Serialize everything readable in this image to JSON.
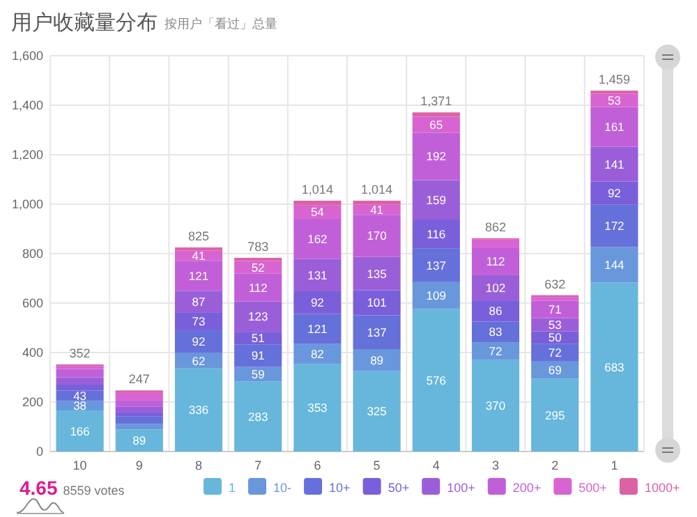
{
  "chart_data": {
    "type": "bar",
    "stacked": true,
    "title": "用户收藏量分布",
    "subtitle": "按用户「看过」总量",
    "categories": [
      "10",
      "9",
      "8",
      "7",
      "6",
      "5",
      "4",
      "3",
      "2",
      "1"
    ],
    "series": [
      {
        "name": "1",
        "color": "#67b6dc",
        "values": [
          166,
          89,
          336,
          283,
          353,
          325,
          576,
          370,
          295,
          683
        ],
        "value_labels": [
          "166",
          "89",
          "336",
          "283",
          "353",
          "325",
          "576",
          "370",
          "295",
          "683"
        ]
      },
      {
        "name": "10-",
        "color": "#6897dc",
        "values": [
          38,
          22,
          62,
          59,
          82,
          89,
          109,
          72,
          69,
          144
        ],
        "value_labels": [
          "38",
          null,
          "62",
          "59",
          "82",
          "89",
          "109",
          "72",
          "69",
          "144"
        ]
      },
      {
        "name": "10+",
        "color": "#6570da",
        "values": [
          43,
          32,
          92,
          91,
          121,
          137,
          137,
          83,
          72,
          172
        ],
        "value_labels": [
          "43",
          null,
          "92",
          "91",
          "121",
          "137",
          "137",
          "83",
          "72",
          "172"
        ]
      },
      {
        "name": "50+",
        "color": "#7a5fdb",
        "values": [
          26,
          15,
          73,
          51,
          92,
          101,
          116,
          86,
          50,
          92
        ],
        "value_labels": [
          null,
          null,
          "73",
          "51",
          "92",
          "101",
          "116",
          "86",
          "50",
          "92"
        ]
      },
      {
        "name": "100+",
        "color": "#9a5fd8",
        "values": [
          27,
          24,
          87,
          123,
          131,
          135,
          159,
          102,
          53,
          141
        ],
        "value_labels": [
          null,
          null,
          "87",
          "123",
          "131",
          "135",
          "159",
          "102",
          "53",
          "141"
        ]
      },
      {
        "name": "200+",
        "color": "#c15fd9",
        "values": [
          34,
          26,
          121,
          112,
          162,
          170,
          192,
          112,
          71,
          161
        ],
        "value_labels": [
          null,
          null,
          "121",
          "112",
          "162",
          "170",
          "192",
          "112",
          "71",
          "161"
        ]
      },
      {
        "name": "500+",
        "color": "#d864d2",
        "values": [
          12,
          29,
          41,
          52,
          54,
          41,
          65,
          32,
          15,
          53
        ],
        "value_labels": [
          null,
          null,
          "41",
          "52",
          "54",
          "41",
          "65",
          null,
          null,
          "53"
        ]
      },
      {
        "name": "1000+",
        "color": "#dc62a6",
        "values": [
          6,
          10,
          13,
          12,
          19,
          16,
          17,
          5,
          7,
          13
        ],
        "value_labels": [
          null,
          null,
          null,
          null,
          null,
          null,
          null,
          null,
          null,
          null
        ]
      }
    ],
    "totals": [
      "352",
      "247",
      "825",
      "783",
      "1,014",
      "1,014",
      "1,371",
      "862",
      "632",
      "1,459"
    ],
    "ylim": [
      0,
      1600
    ],
    "yticks": [
      {
        "value": 0,
        "label": "0"
      },
      {
        "value": 200,
        "label": "200"
      },
      {
        "value": 400,
        "label": "400"
      },
      {
        "value": 600,
        "label": "600"
      },
      {
        "value": 800,
        "label": "800"
      },
      {
        "value": 1000,
        "label": "1,000"
      },
      {
        "value": 1200,
        "label": "1,200"
      },
      {
        "value": 1400,
        "label": "1,400"
      },
      {
        "value": 1600,
        "label": "1,600"
      }
    ],
    "grid": true,
    "legend": "bottom",
    "annotations": [
      "4.65",
      "8559 votes"
    ]
  }
}
